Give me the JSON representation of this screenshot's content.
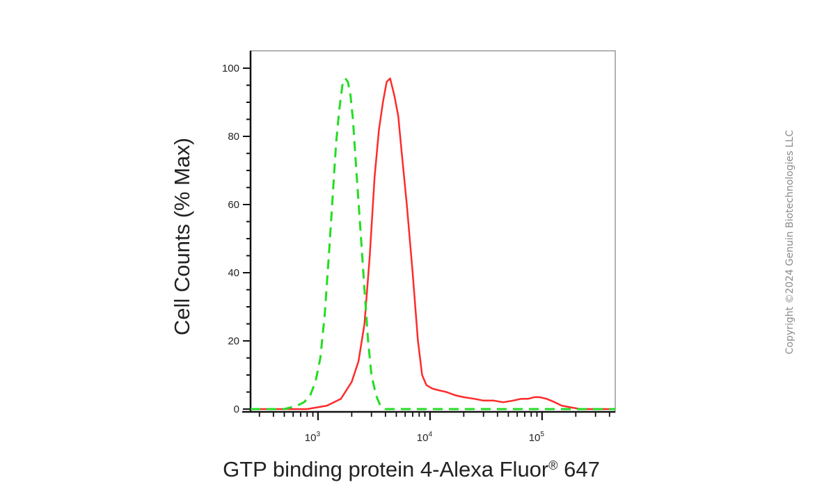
{
  "chart_data": {
    "type": "line",
    "title": "",
    "xlabel": "GTP binding protein 4-Alexa Fluor",
    "xlabel_sup": "®",
    "xlabel_suffix": " 647",
    "ylabel": "Cell Counts (% Max)",
    "xscale": "log",
    "xlim": [
      250,
      450000
    ],
    "ylim": [
      0,
      105
    ],
    "y_ticks": [
      0,
      20,
      40,
      60,
      80,
      100
    ],
    "x_ticks": [
      {
        "value": 1000,
        "base": "10",
        "exp": "3"
      },
      {
        "value": 10000,
        "base": "10",
        "exp": "4"
      },
      {
        "value": 100000,
        "base": "10",
        "exp": "5"
      }
    ],
    "grid": false,
    "legend": "none",
    "series": [
      {
        "color": "#ff2a2a",
        "style": "solid",
        "x": [
          250,
          800,
          1200,
          1600,
          2000,
          2300,
          2600,
          2900,
          3200,
          3500,
          3800,
          4100,
          4400,
          4800,
          5200,
          5600,
          6200,
          7000,
          7800,
          8500,
          9300,
          10500,
          12000,
          14000,
          17000,
          20000,
          25000,
          30000,
          37000,
          45000,
          55000,
          65000,
          75000,
          85000,
          95000,
          110000,
          130000,
          150000,
          180000,
          220000,
          450000
        ],
        "y": [
          0,
          0,
          1,
          3,
          8,
          14,
          25,
          45,
          68,
          82,
          90,
          96,
          97,
          92,
          86,
          75,
          60,
          40,
          20,
          10,
          7,
          6,
          5.5,
          5,
          4,
          3.5,
          3,
          2.5,
          2.5,
          2,
          2.5,
          3,
          3,
          3.5,
          3.5,
          3,
          2,
          1,
          0.5,
          0,
          0
        ]
      },
      {
        "color": "#22dd22",
        "style": "dashed",
        "x": [
          250,
          500,
          650,
          750,
          850,
          950,
          1050,
          1150,
          1250,
          1350,
          1450,
          1550,
          1650,
          1750,
          1850,
          1950,
          2050,
          2200,
          2400,
          2600,
          2800,
          3000,
          3300,
          3600,
          4000,
          5000,
          450000
        ],
        "y": [
          0,
          0,
          1,
          2,
          4,
          8,
          15,
          28,
          45,
          62,
          78,
          88,
          95,
          97,
          96,
          92,
          85,
          70,
          52,
          35,
          20,
          10,
          4,
          1,
          0,
          0,
          0
        ]
      }
    ]
  },
  "copyright": "Copyright ©2024 Genuin Biotechnologies LLC"
}
